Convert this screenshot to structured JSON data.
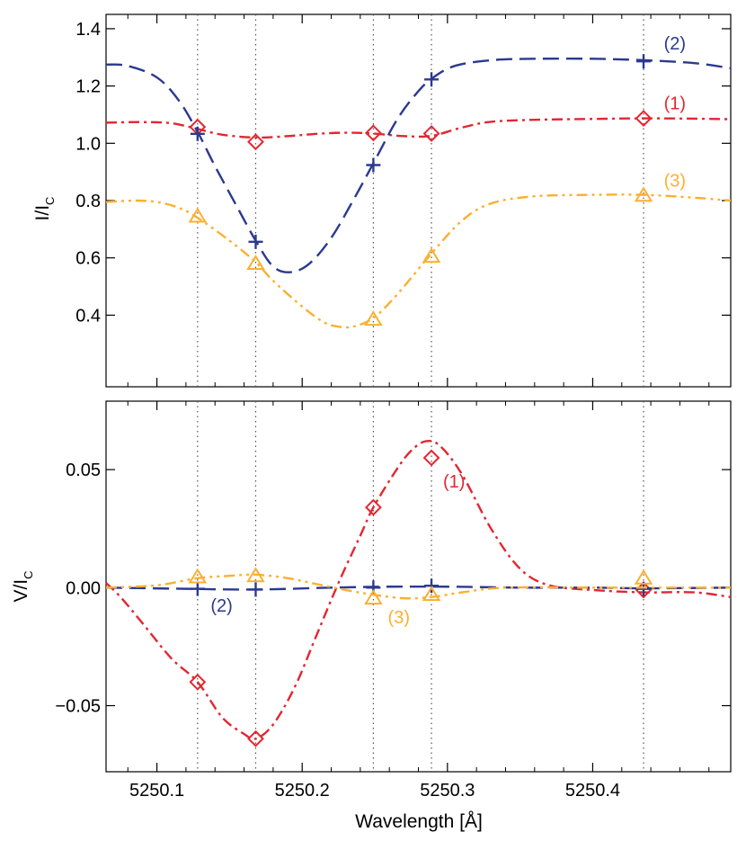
{
  "colors": {
    "s1": "#e32630",
    "s2": "#2b3990",
    "s3": "#fbb02f",
    "axis": "#000000",
    "ref": "#555555"
  },
  "chart_data": [
    {
      "type": "line",
      "panel": "top",
      "ylabel_main": "I/I",
      "ylabel_sub": "C",
      "xlim": [
        5250.065,
        5250.495
      ],
      "ylim": [
        0.15,
        1.45
      ],
      "yticks": [
        0.4,
        0.6,
        0.8,
        1.0,
        1.2,
        1.4
      ],
      "ytick_labels": [
        "0.4",
        "0.6",
        "0.8",
        "1.0",
        "1.2",
        "1.4"
      ],
      "ref_lines": [
        5250.128,
        5250.168,
        5250.249,
        5250.289,
        5250.435
      ],
      "series": [
        {
          "id": "s1",
          "name": "(1)",
          "style": "dash-dot",
          "marker": "diamond",
          "label_pos": [
            5250.449,
            1.14
          ],
          "curve": [
            [
              5250.065,
              1.072
            ],
            [
              5250.09,
              1.074
            ],
            [
              5250.11,
              1.07
            ],
            [
              5250.128,
              1.05
            ],
            [
              5250.145,
              1.03
            ],
            [
              5250.168,
              1.02
            ],
            [
              5250.19,
              1.025
            ],
            [
              5250.21,
              1.033
            ],
            [
              5250.23,
              1.037
            ],
            [
              5250.249,
              1.034
            ],
            [
              5250.27,
              1.025
            ],
            [
              5250.289,
              1.026
            ],
            [
              5250.31,
              1.055
            ],
            [
              5250.33,
              1.075
            ],
            [
              5250.36,
              1.082
            ],
            [
              5250.4,
              1.085
            ],
            [
              5250.435,
              1.087
            ],
            [
              5250.47,
              1.086
            ],
            [
              5250.495,
              1.084
            ]
          ],
          "points": [
            [
              5250.128,
              1.057
            ],
            [
              5250.168,
              1.005
            ],
            [
              5250.249,
              1.036
            ],
            [
              5250.289,
              1.034
            ],
            [
              5250.435,
              1.087
            ]
          ]
        },
        {
          "id": "s2",
          "name": "(2)",
          "style": "dash",
          "marker": "plus",
          "label_pos": [
            5250.449,
            1.35
          ],
          "curve": [
            [
              5250.065,
              1.275
            ],
            [
              5250.08,
              1.27
            ],
            [
              5250.1,
              1.23
            ],
            [
              5250.115,
              1.15
            ],
            [
              5250.128,
              1.04
            ],
            [
              5250.14,
              0.92
            ],
            [
              5250.155,
              0.78
            ],
            [
              5250.168,
              0.66
            ],
            [
              5250.18,
              0.57
            ],
            [
              5250.192,
              0.55
            ],
            [
              5250.205,
              0.58
            ],
            [
              5250.22,
              0.67
            ],
            [
              5250.235,
              0.8
            ],
            [
              5250.249,
              0.93
            ],
            [
              5250.265,
              1.08
            ],
            [
              5250.278,
              1.17
            ],
            [
              5250.289,
              1.225
            ],
            [
              5250.305,
              1.27
            ],
            [
              5250.33,
              1.29
            ],
            [
              5250.36,
              1.295
            ],
            [
              5250.4,
              1.295
            ],
            [
              5250.435,
              1.29
            ],
            [
              5250.47,
              1.28
            ],
            [
              5250.495,
              1.262
            ]
          ],
          "points": [
            [
              5250.128,
              1.033
            ],
            [
              5250.168,
              0.656
            ],
            [
              5250.249,
              0.924
            ],
            [
              5250.289,
              1.223
            ],
            [
              5250.435,
              1.286
            ]
          ]
        },
        {
          "id": "s3",
          "name": "(3)",
          "style": "dash-dot-dot",
          "marker": "triangle",
          "label_pos": [
            5250.449,
            0.87
          ],
          "curve": [
            [
              5250.065,
              0.795
            ],
            [
              5250.085,
              0.8
            ],
            [
              5250.1,
              0.795
            ],
            [
              5250.115,
              0.775
            ],
            [
              5250.128,
              0.74
            ],
            [
              5250.15,
              0.66
            ],
            [
              5250.168,
              0.585
            ],
            [
              5250.18,
              0.52
            ],
            [
              5250.2,
              0.43
            ],
            [
              5250.215,
              0.375
            ],
            [
              5250.225,
              0.36
            ],
            [
              5250.235,
              0.36
            ],
            [
              5250.249,
              0.39
            ],
            [
              5250.265,
              0.47
            ],
            [
              5250.289,
              0.615
            ],
            [
              5250.31,
              0.73
            ],
            [
              5250.33,
              0.79
            ],
            [
              5250.36,
              0.815
            ],
            [
              5250.4,
              0.82
            ],
            [
              5250.435,
              0.82
            ],
            [
              5250.47,
              0.81
            ],
            [
              5250.495,
              0.8
            ]
          ],
          "points": [
            [
              5250.128,
              0.745
            ],
            [
              5250.168,
              0.58
            ],
            [
              5250.249,
              0.385
            ],
            [
              5250.289,
              0.605
            ],
            [
              5250.435,
              0.818
            ]
          ]
        }
      ]
    },
    {
      "type": "line",
      "panel": "bottom",
      "xlabel": "Wavelength [Å]",
      "ylabel_main": "V/I",
      "ylabel_sub": "C",
      "xlim": [
        5250.065,
        5250.495
      ],
      "ylim": [
        -0.078,
        0.079
      ],
      "xticks": [
        5250.1,
        5250.2,
        5250.3,
        5250.4
      ],
      "xtick_labels": [
        "5250.1",
        "5250.2",
        "5250.3",
        "5250.4"
      ],
      "yticks": [
        -0.05,
        0.0,
        0.05
      ],
      "ytick_labels": [
        "−0.05",
        "0.00",
        "0.05"
      ],
      "ref_lines": [
        5250.128,
        5250.168,
        5250.249,
        5250.289,
        5250.435
      ],
      "series": [
        {
          "id": "s1",
          "name": "(1)",
          "style": "dash-dot",
          "marker": "diamond",
          "label_pos": [
            5250.297,
            0.045
          ],
          "curve": [
            [
              5250.065,
              0.002
            ],
            [
              5250.075,
              -0.004
            ],
            [
              5250.09,
              -0.015
            ],
            [
              5250.11,
              -0.03
            ],
            [
              5250.128,
              -0.04
            ],
            [
              5250.145,
              -0.055
            ],
            [
              5250.16,
              -0.062
            ],
            [
              5250.168,
              -0.064
            ],
            [
              5250.18,
              -0.058
            ],
            [
              5250.195,
              -0.042
            ],
            [
              5250.21,
              -0.02
            ],
            [
              5250.225,
              0.002
            ],
            [
              5250.24,
              0.022
            ],
            [
              5250.249,
              0.034
            ],
            [
              5250.265,
              0.05
            ],
            [
              5250.275,
              0.058
            ],
            [
              5250.285,
              0.062
            ],
            [
              5250.295,
              0.06
            ],
            [
              5250.31,
              0.048
            ],
            [
              5250.33,
              0.025
            ],
            [
              5250.35,
              0.008
            ],
            [
              5250.37,
              0.001
            ],
            [
              5250.4,
              -0.001
            ],
            [
              5250.435,
              -0.002
            ],
            [
              5250.47,
              -0.002
            ],
            [
              5250.495,
              -0.004
            ]
          ],
          "points": [
            [
              5250.128,
              -0.04
            ],
            [
              5250.168,
              -0.064
            ],
            [
              5250.249,
              0.034
            ],
            [
              5250.289,
              0.055
            ],
            [
              5250.435,
              -0.001
            ]
          ]
        },
        {
          "id": "s2",
          "name": "(2)",
          "style": "dash",
          "marker": "plus",
          "label_pos": [
            5250.137,
            -0.0075
          ],
          "curve": [
            [
              5250.065,
              0.0
            ],
            [
              5250.12,
              -0.0005
            ],
            [
              5250.168,
              -0.0008
            ],
            [
              5250.22,
              0.0
            ],
            [
              5250.26,
              0.0004
            ],
            [
              5250.3,
              0.0004
            ],
            [
              5250.35,
              0.0
            ],
            [
              5250.4,
              0.0
            ],
            [
              5250.435,
              -0.0003
            ],
            [
              5250.495,
              0.0
            ]
          ],
          "points": [
            [
              5250.128,
              -0.0005
            ],
            [
              5250.168,
              -0.0008
            ],
            [
              5250.249,
              0.0
            ],
            [
              5250.289,
              0.0008
            ],
            [
              5250.435,
              -0.0005
            ]
          ]
        },
        {
          "id": "s3",
          "name": "(3)",
          "style": "dash-dot-dot",
          "marker": "triangle",
          "label_pos": [
            5250.259,
            -0.0125
          ],
          "curve": [
            [
              5250.065,
              0.0
            ],
            [
              5250.1,
              0.001
            ],
            [
              5250.128,
              0.004
            ],
            [
              5250.15,
              0.005
            ],
            [
              5250.168,
              0.0055
            ],
            [
              5250.19,
              0.004
            ],
            [
              5250.21,
              0.0015
            ],
            [
              5250.23,
              -0.001
            ],
            [
              5250.249,
              -0.003
            ],
            [
              5250.27,
              -0.0045
            ],
            [
              5250.289,
              -0.004
            ],
            [
              5250.31,
              -0.002
            ],
            [
              5250.34,
              0.0
            ],
            [
              5250.4,
              0.0
            ],
            [
              5250.435,
              0.0
            ],
            [
              5250.495,
              0.0
            ]
          ],
          "points": [
            [
              5250.128,
              0.0045
            ],
            [
              5250.168,
              0.005
            ],
            [
              5250.249,
              -0.0045
            ],
            [
              5250.289,
              -0.003
            ],
            [
              5250.435,
              0.004
            ]
          ]
        }
      ]
    }
  ]
}
